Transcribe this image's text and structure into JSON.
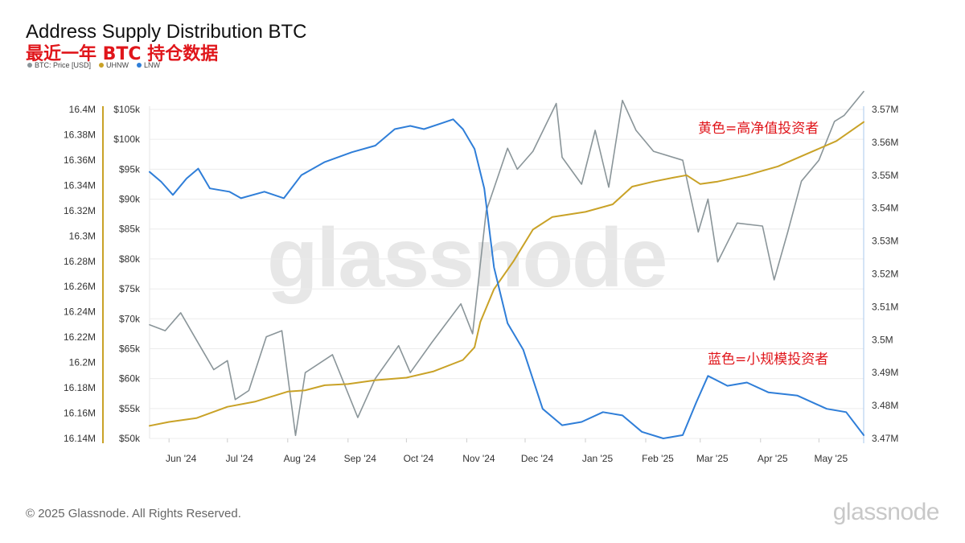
{
  "header": {
    "title": "Address Supply Distribution BTC",
    "subtitle": "最近一年 BTC 持仓数据"
  },
  "legend": [
    {
      "label": "BTC: Price [USD]",
      "color": "#8a9599"
    },
    {
      "label": "UHNW",
      "color": "#c9a227"
    },
    {
      "label": "LNW",
      "color": "#2f7ed8"
    }
  ],
  "annotations": {
    "yellow_note": "黄色=高净值投资者",
    "blue_note": "蓝色=小规模投资者"
  },
  "watermark": "glassnode",
  "footer": {
    "copyright": "© 2025 Glassnode. All Rights Reserved.",
    "logo": "glassnode"
  },
  "chart_data": {
    "type": "line",
    "x_ticks": [
      "Jun '24",
      "Jul '24",
      "Aug '24",
      "Sep '24",
      "Oct '24",
      "Nov '24",
      "Dec '24",
      "Jan '25",
      "Feb '25",
      "Mar '25",
      "Apr '25",
      "May '25"
    ],
    "x_range": [
      "2024-05-22",
      "2025-05-24"
    ],
    "y_axes": {
      "uhnw": {
        "ticks": [
          "16.4M",
          "16.38M",
          "16.36M",
          "16.34M",
          "16.32M",
          "16.3M",
          "16.28M",
          "16.26M",
          "16.24M",
          "16.22M",
          "16.2M",
          "16.18M",
          "16.16M",
          "16.14M"
        ],
        "range": [
          16140000,
          16400000
        ],
        "color": "#c9a227"
      },
      "price": {
        "ticks": [
          "$105k",
          "$100k",
          "$95k",
          "$90k",
          "$85k",
          "$80k",
          "$75k",
          "$70k",
          "$65k",
          "$60k",
          "$55k",
          "$50k"
        ],
        "range": [
          50000,
          105000
        ]
      },
      "lnw": {
        "ticks": [
          "3.57M",
          "3.56M",
          "3.55M",
          "3.54M",
          "3.53M",
          "3.52M",
          "3.51M",
          "3.5M",
          "3.49M",
          "3.48M",
          "3.47M"
        ],
        "range": [
          3470000,
          3570000
        ],
        "color": "#2f7ed8"
      }
    },
    "series": [
      {
        "name": "BTC: Price [USD]",
        "color": "#8a9599",
        "points": [
          [
            "2024-05-22",
            69000
          ],
          [
            "2024-05-30",
            68000
          ],
          [
            "2024-06-07",
            71000
          ],
          [
            "2024-06-15",
            66500
          ],
          [
            "2024-06-24",
            61500
          ],
          [
            "2024-07-01",
            63000
          ],
          [
            "2024-07-05",
            56500
          ],
          [
            "2024-07-12",
            58000
          ],
          [
            "2024-07-21",
            67000
          ],
          [
            "2024-07-29",
            68000
          ],
          [
            "2024-08-05",
            50500
          ],
          [
            "2024-08-10",
            61000
          ],
          [
            "2024-08-24",
            64000
          ],
          [
            "2024-09-06",
            53500
          ],
          [
            "2024-09-15",
            60000
          ],
          [
            "2024-09-27",
            65500
          ],
          [
            "2024-10-03",
            61000
          ],
          [
            "2024-10-14",
            66000
          ],
          [
            "2024-10-29",
            72500
          ],
          [
            "2024-11-04",
            67500
          ],
          [
            "2024-11-11",
            88000
          ],
          [
            "2024-11-22",
            98500
          ],
          [
            "2024-11-27",
            95000
          ],
          [
            "2024-12-05",
            98000
          ],
          [
            "2024-12-17",
            106000
          ],
          [
            "2024-12-20",
            97000
          ],
          [
            "2024-12-30",
            92500
          ],
          [
            "2025-01-06",
            101500
          ],
          [
            "2025-01-13",
            92000
          ],
          [
            "2025-01-20",
            106500
          ],
          [
            "2025-01-27",
            101500
          ],
          [
            "2025-02-05",
            98000
          ],
          [
            "2025-02-20",
            96500
          ],
          [
            "2025-02-28",
            84500
          ],
          [
            "2025-03-05",
            90000
          ],
          [
            "2025-03-10",
            79500
          ],
          [
            "2025-03-20",
            86000
          ],
          [
            "2025-04-02",
            85500
          ],
          [
            "2025-04-08",
            76500
          ],
          [
            "2025-04-15",
            84500
          ],
          [
            "2025-04-22",
            93000
          ],
          [
            "2025-05-01",
            96500
          ],
          [
            "2025-05-09",
            103000
          ],
          [
            "2025-05-14",
            104000
          ],
          [
            "2025-05-24",
            108000
          ]
        ]
      },
      {
        "name": "UHNW",
        "color": "#c9a227",
        "points": [
          [
            "2024-05-22",
            16150000
          ],
          [
            "2024-06-01",
            16153000
          ],
          [
            "2024-06-15",
            16156000
          ],
          [
            "2024-07-01",
            16165000
          ],
          [
            "2024-07-15",
            16169000
          ],
          [
            "2024-08-01",
            16177000
          ],
          [
            "2024-08-10",
            16178000
          ],
          [
            "2024-08-20",
            16182000
          ],
          [
            "2024-09-01",
            16183000
          ],
          [
            "2024-09-15",
            16186000
          ],
          [
            "2024-10-01",
            16188000
          ],
          [
            "2024-10-15",
            16193000
          ],
          [
            "2024-10-30",
            16202000
          ],
          [
            "2024-11-05",
            16212000
          ],
          [
            "2024-11-08",
            16232000
          ],
          [
            "2024-11-15",
            16258000
          ],
          [
            "2024-11-25",
            16280000
          ],
          [
            "2024-12-05",
            16305000
          ],
          [
            "2024-12-15",
            16315000
          ],
          [
            "2025-01-01",
            16319000
          ],
          [
            "2025-01-15",
            16325000
          ],
          [
            "2025-01-25",
            16339000
          ],
          [
            "2025-02-05",
            16343000
          ],
          [
            "2025-02-15",
            16346000
          ],
          [
            "2025-02-22",
            16348000
          ],
          [
            "2025-03-01",
            16341000
          ],
          [
            "2025-03-10",
            16343000
          ],
          [
            "2025-03-25",
            16348000
          ],
          [
            "2025-04-10",
            16355000
          ],
          [
            "2025-04-25",
            16365000
          ],
          [
            "2025-05-10",
            16375000
          ],
          [
            "2025-05-24",
            16390000
          ]
        ]
      },
      {
        "name": "LNW",
        "color": "#2f7ed8",
        "points": [
          [
            "2024-05-22",
            3551000
          ],
          [
            "2024-05-28",
            3548000
          ],
          [
            "2024-06-03",
            3544000
          ],
          [
            "2024-06-10",
            3549000
          ],
          [
            "2024-06-16",
            3552000
          ],
          [
            "2024-06-22",
            3546000
          ],
          [
            "2024-07-02",
            3545000
          ],
          [
            "2024-07-08",
            3543000
          ],
          [
            "2024-07-20",
            3545000
          ],
          [
            "2024-07-30",
            3543000
          ],
          [
            "2024-08-08",
            3550000
          ],
          [
            "2024-08-20",
            3554000
          ],
          [
            "2024-09-03",
            3557000
          ],
          [
            "2024-09-15",
            3559000
          ],
          [
            "2024-09-25",
            3564000
          ],
          [
            "2024-10-03",
            3565000
          ],
          [
            "2024-10-10",
            3564000
          ],
          [
            "2024-10-20",
            3566000
          ],
          [
            "2024-10-25",
            3567000
          ],
          [
            "2024-10-30",
            3564000
          ],
          [
            "2024-11-05",
            3558000
          ],
          [
            "2024-11-10",
            3546000
          ],
          [
            "2024-11-15",
            3522000
          ],
          [
            "2024-11-22",
            3505000
          ],
          [
            "2024-11-30",
            3497000
          ],
          [
            "2024-12-10",
            3479000
          ],
          [
            "2024-12-20",
            3474000
          ],
          [
            "2024-12-30",
            3475000
          ],
          [
            "2025-01-10",
            3478000
          ],
          [
            "2025-01-20",
            3477000
          ],
          [
            "2025-01-30",
            3472000
          ],
          [
            "2025-02-10",
            3470000
          ],
          [
            "2025-02-20",
            3471000
          ],
          [
            "2025-02-27",
            3481000
          ],
          [
            "2025-03-05",
            3489000
          ],
          [
            "2025-03-15",
            3486000
          ],
          [
            "2025-03-25",
            3487000
          ],
          [
            "2025-04-05",
            3484000
          ],
          [
            "2025-04-20",
            3483000
          ],
          [
            "2025-05-05",
            3479000
          ],
          [
            "2025-05-15",
            3478000
          ],
          [
            "2025-05-24",
            3471000
          ]
        ]
      }
    ],
    "grid": true,
    "legend_position": "top-left"
  }
}
